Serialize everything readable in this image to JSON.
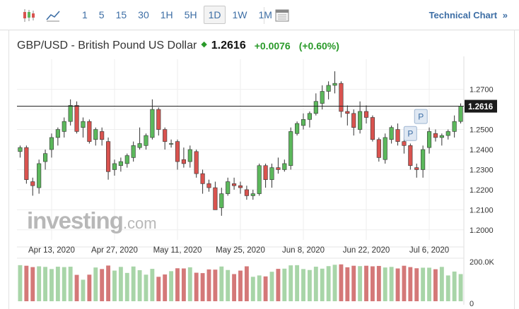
{
  "toolbar": {
    "timeframes": [
      "1",
      "5",
      "15",
      "30",
      "1H",
      "5H",
      "1D",
      "1W",
      "1M"
    ],
    "active_timeframe": "1D",
    "technical_chart_label": "Technical Chart",
    "icons": [
      "candlestick-icon",
      "line-chart-icon",
      "calendar-icon",
      "double-chevron-right-icon"
    ]
  },
  "header": {
    "instrument": "GBP/USD - British Pound US Dollar",
    "price": "1.2616",
    "change": "+0.0076",
    "change_pct": "(+0.60%)",
    "arrow": "◆"
  },
  "watermark": {
    "brand": "investing",
    "domain": ".com"
  },
  "colors": {
    "up": "#5cb85c",
    "down": "#d9534f",
    "up_vol": "#a8d5a8",
    "down_vol": "#d47878",
    "accent": "#3d6ea5",
    "positive_text": "#2a9a2a"
  },
  "chart_data": {
    "type": "candlestick",
    "ylim": [
      1.195,
      1.285
    ],
    "y_ticks": [
      "1.2700",
      "1.2600",
      "1.2500",
      "1.2400",
      "1.2300",
      "1.2200",
      "1.2100",
      "1.2000"
    ],
    "x_tick_labels": [
      "Apr 13, 2020",
      "Apr 27, 2020",
      "May 11, 2020",
      "May 25, 2020",
      "Jun 8, 2020",
      "Jun 22, 2020",
      "Jul 6, 2020"
    ],
    "x_tick_indices": [
      5,
      15,
      25,
      35,
      45,
      55,
      65
    ],
    "current_price_label": "1.2616",
    "current_price": 1.2616,
    "volume_axis_labels": [
      "200.0K",
      "0"
    ],
    "volume_max": 200000,
    "markers": [
      {
        "label": "P",
        "index": 63,
        "price": 1.2565
      },
      {
        "label": "P",
        "index": 62,
        "price": 1.248
      }
    ],
    "candles": [
      [
        1.239,
        1.242,
        1.236,
        1.241
      ],
      [
        1.241,
        1.242,
        1.223,
        1.225
      ],
      [
        1.224,
        1.226,
        1.217,
        1.222
      ],
      [
        1.221,
        1.235,
        1.218,
        1.233
      ],
      [
        1.234,
        1.24,
        1.23,
        1.238
      ],
      [
        1.24,
        1.248,
        1.236,
        1.246
      ],
      [
        1.246,
        1.251,
        1.242,
        1.25
      ],
      [
        1.249,
        1.256,
        1.246,
        1.254
      ],
      [
        1.254,
        1.265,
        1.252,
        1.262
      ],
      [
        1.262,
        1.264,
        1.248,
        1.249
      ],
      [
        1.251,
        1.256,
        1.246,
        1.254
      ],
      [
        1.254,
        1.255,
        1.243,
        1.244
      ],
      [
        1.245,
        1.251,
        1.242,
        1.25
      ],
      [
        1.249,
        1.251,
        1.242,
        1.245
      ],
      [
        1.244,
        1.246,
        1.225,
        1.229
      ],
      [
        1.23,
        1.235,
        1.227,
        1.233
      ],
      [
        1.232,
        1.236,
        1.229,
        1.234
      ],
      [
        1.233,
        1.238,
        1.231,
        1.237
      ],
      [
        1.236,
        1.244,
        1.234,
        1.242
      ],
      [
        1.241,
        1.251,
        1.24,
        1.243
      ],
      [
        1.242,
        1.248,
        1.24,
        1.247
      ],
      [
        1.246,
        1.265,
        1.245,
        1.26
      ],
      [
        1.26,
        1.261,
        1.247,
        1.25
      ],
      [
        1.25,
        1.251,
        1.24,
        1.244
      ],
      [
        1.243,
        1.245,
        1.241,
        1.243
      ],
      [
        1.244,
        1.245,
        1.23,
        1.234
      ],
      [
        1.235,
        1.241,
        1.231,
        1.233
      ],
      [
        1.234,
        1.242,
        1.231,
        1.24
      ],
      [
        1.239,
        1.24,
        1.226,
        1.228
      ],
      [
        1.228,
        1.23,
        1.218,
        1.223
      ],
      [
        1.223,
        1.225,
        1.219,
        1.221
      ],
      [
        1.221,
        1.224,
        1.21,
        1.21
      ],
      [
        1.211,
        1.221,
        1.207,
        1.218
      ],
      [
        1.218,
        1.226,
        1.217,
        1.224
      ],
      [
        1.223,
        1.226,
        1.22,
        1.222
      ],
      [
        1.222,
        1.224,
        1.218,
        1.221
      ],
      [
        1.22,
        1.222,
        1.215,
        1.217
      ],
      [
        1.217,
        1.22,
        1.215,
        1.218
      ],
      [
        1.218,
        1.233,
        1.217,
        1.232
      ],
      [
        1.232,
        1.233,
        1.221,
        1.225
      ],
      [
        1.225,
        1.233,
        1.221,
        1.231
      ],
      [
        1.231,
        1.236,
        1.228,
        1.23
      ],
      [
        1.23,
        1.235,
        1.229,
        1.233
      ],
      [
        1.232,
        1.251,
        1.23,
        1.249
      ],
      [
        1.248,
        1.254,
        1.247,
        1.253
      ],
      [
        1.252,
        1.258,
        1.25,
        1.255
      ],
      [
        1.255,
        1.259,
        1.251,
        1.258
      ],
      [
        1.258,
        1.268,
        1.257,
        1.264
      ],
      [
        1.263,
        1.272,
        1.26,
        1.269
      ],
      [
        1.269,
        1.274,
        1.265,
        1.272
      ],
      [
        1.272,
        1.279,
        1.268,
        1.273
      ],
      [
        1.273,
        1.274,
        1.256,
        1.259
      ],
      [
        1.259,
        1.262,
        1.252,
        1.258
      ],
      [
        1.258,
        1.26,
        1.247,
        1.251
      ],
      [
        1.25,
        1.264,
        1.248,
        1.259
      ],
      [
        1.259,
        1.262,
        1.253,
        1.256
      ],
      [
        1.256,
        1.257,
        1.244,
        1.245
      ],
      [
        1.245,
        1.246,
        1.234,
        1.236
      ],
      [
        1.235,
        1.248,
        1.233,
        1.246
      ],
      [
        1.245,
        1.252,
        1.243,
        1.251
      ],
      [
        1.25,
        1.253,
        1.242,
        1.244
      ],
      [
        1.244,
        1.246,
        1.238,
        1.242
      ],
      [
        1.242,
        1.243,
        1.23,
        1.232
      ],
      [
        1.231,
        1.233,
        1.226,
        1.23
      ],
      [
        1.23,
        1.242,
        1.226,
        1.24
      ],
      [
        1.241,
        1.251,
        1.238,
        1.249
      ],
      [
        1.248,
        1.25,
        1.244,
        1.246
      ],
      [
        1.246,
        1.248,
        1.242,
        1.247
      ],
      [
        1.247,
        1.25,
        1.245,
        1.249
      ],
      [
        1.249,
        1.257,
        1.246,
        1.254
      ],
      [
        1.254,
        1.263,
        1.253,
        1.2616
      ]
    ],
    "volumes": [
      186000,
      183000,
      176000,
      180000,
      177000,
      166000,
      178000,
      176000,
      178000,
      136000,
      111000,
      137000,
      174000,
      166000,
      184000,
      158000,
      177000,
      146000,
      179000,
      160000,
      137000,
      167000,
      126000,
      138000,
      155000,
      170000,
      169000,
      175000,
      147000,
      145000,
      164000,
      163000,
      179000,
      161000,
      140000,
      158000,
      180000,
      126000,
      133000,
      128000,
      152000,
      167000,
      168000,
      185000,
      186000,
      166000,
      161000,
      178000,
      168000,
      181000,
      188000,
      190000,
      175000,
      183000,
      181000,
      183000,
      180000,
      182000,
      174000,
      177000,
      169000,
      183000,
      176000,
      170000,
      173000,
      173000,
      165000,
      177000,
      133000,
      153000,
      140000
    ]
  }
}
